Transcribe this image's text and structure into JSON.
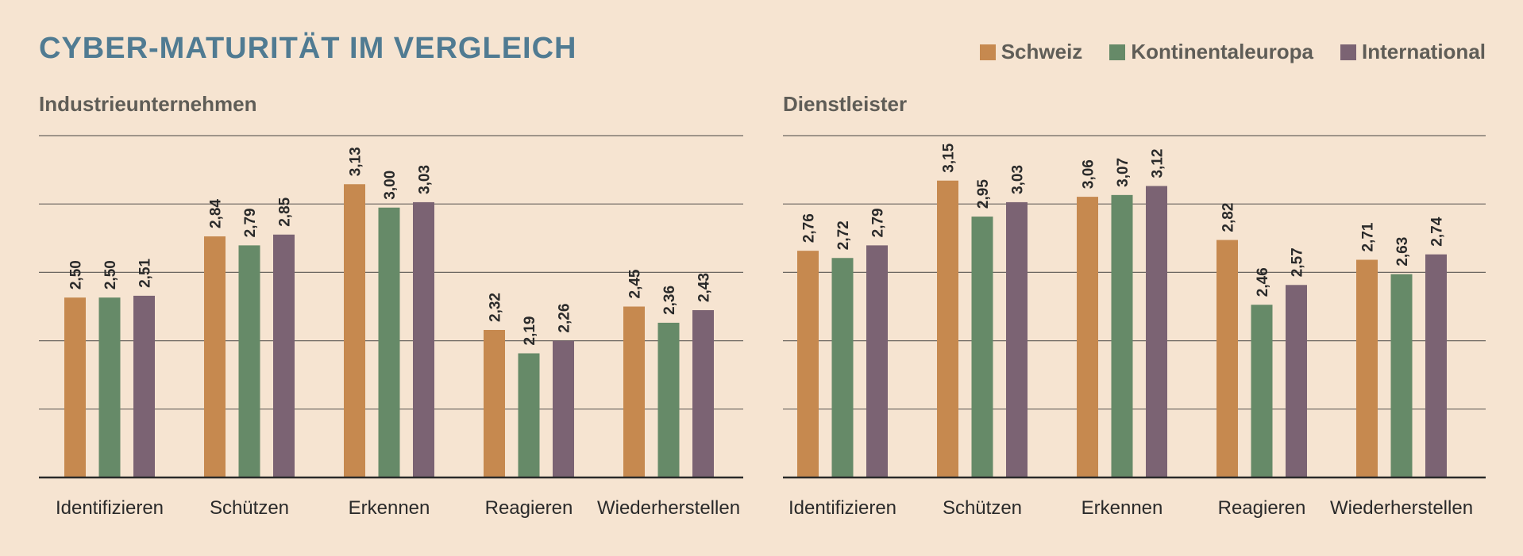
{
  "title": "CYBER-MATURITÄT IM VERGLEICH",
  "colors": {
    "Schweiz": "#c6894f",
    "Kontinentaleuropa": "#668a68",
    "International": "#7b6373"
  },
  "chart_data": [
    {
      "type": "bar",
      "title": "Industrieunternehmen",
      "categories": [
        "Identifizieren",
        "Schützen",
        "Erkennen",
        "Reagieren",
        "Wiederherstellen"
      ],
      "series": [
        {
          "name": "Schweiz",
          "values": [
            2.5,
            2.84,
            3.13,
            2.32,
            2.45
          ],
          "labels": [
            "2,50",
            "2,84",
            "3,13",
            "2,32",
            "2,45"
          ]
        },
        {
          "name": "Kontinentaleuropa",
          "values": [
            2.5,
            2.79,
            3.0,
            2.19,
            2.36
          ],
          "labels": [
            "2,50",
            "2,79",
            "3,00",
            "2,19",
            "2,36"
          ]
        },
        {
          "name": "International",
          "values": [
            2.51,
            2.85,
            3.03,
            2.26,
            2.43
          ],
          "labels": [
            "2,51",
            "2,85",
            "3,03",
            "2,26",
            "2,43"
          ]
        }
      ],
      "ylim": [
        1.5,
        3.4
      ],
      "grid": true,
      "legend": "top-right"
    },
    {
      "type": "bar",
      "title": "Dienstleister",
      "categories": [
        "Identifizieren",
        "Schützen",
        "Erkennen",
        "Reagieren",
        "Wiederherstellen"
      ],
      "series": [
        {
          "name": "Schweiz",
          "values": [
            2.76,
            3.15,
            3.06,
            2.82,
            2.71
          ],
          "labels": [
            "2,76",
            "3,15",
            "3,06",
            "2,82",
            "2,71"
          ]
        },
        {
          "name": "Kontinentaleuropa",
          "values": [
            2.72,
            2.95,
            3.07,
            2.46,
            2.63
          ],
          "labels": [
            "2,72",
            "2,95",
            "3,07",
            "2,46",
            "2,63"
          ]
        },
        {
          "name": "International",
          "values": [
            2.79,
            3.03,
            3.12,
            2.57,
            2.74
          ],
          "labels": [
            "2,79",
            "3,03",
            "3,12",
            "2,57",
            "2,74"
          ]
        }
      ],
      "ylim": [
        1.5,
        3.4
      ],
      "grid": true,
      "legend": "top-right"
    }
  ]
}
